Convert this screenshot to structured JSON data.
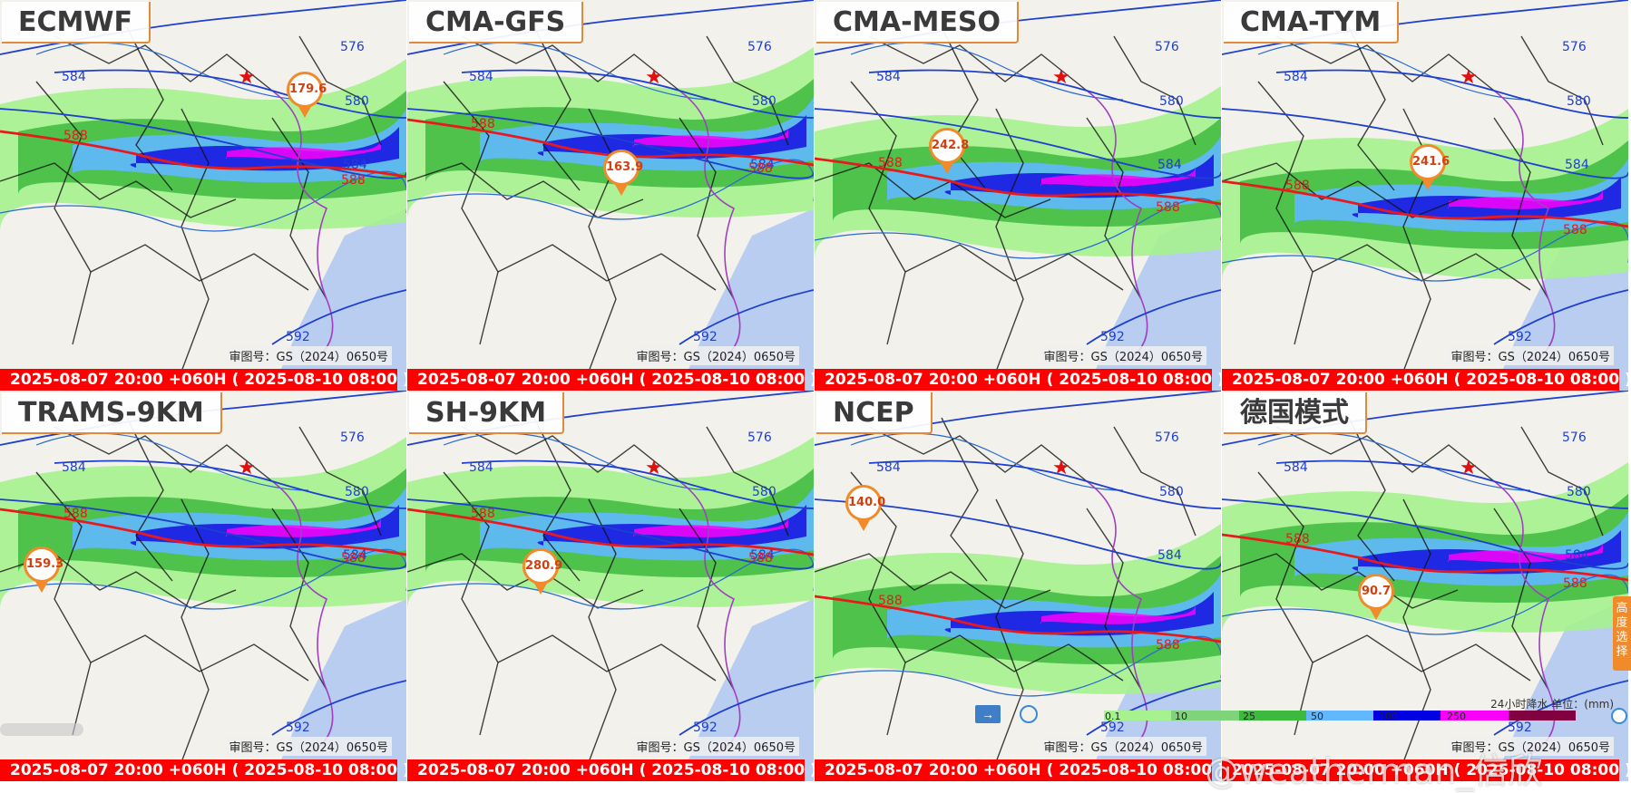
{
  "panels": [
    {
      "title": "ECMWF",
      "approval": "审图号：GS（2024）0650号",
      "time": "2025-08-07 20:00 +060H ( 2025-08-10 08:00 )",
      "max_value": "179.6",
      "contours": [
        "584",
        "576",
        "580",
        "588",
        "584",
        "588",
        "592"
      ]
    },
    {
      "title": "CMA-GFS",
      "approval": "审图号：GS（2024）0650号",
      "time": "2025-08-07 20:00 +060H ( 2025-08-10 08:00 )",
      "max_value": "163.9",
      "contours": [
        "584",
        "576",
        "580",
        "588",
        "584",
        "588",
        "592"
      ]
    },
    {
      "title": "CMA-MESO",
      "approval": "审图号：GS（2024）0650号",
      "time": "2025-08-07 20:00 +060H ( 2025-08-10 08:00 )",
      "max_value": "242.8",
      "contours": [
        "584",
        "576",
        "580",
        "588",
        "584",
        "588",
        "592"
      ]
    },
    {
      "title": "CMA-TYM",
      "approval": "审图号：GS（2024）0650号",
      "time": "2025-08-07 20:00 +060H ( 2025-08-10 08:00 )",
      "max_value": "241.6",
      "contours": [
        "584",
        "576",
        "580",
        "588",
        "584",
        "588",
        "592"
      ]
    },
    {
      "title": "TRAMS-9KM",
      "approval": "审图号：GS（2024）0650号",
      "time": "2025-08-07 20:00 +060H ( 2025-08-10 08:00 )",
      "max_value": "159.3",
      "contours": [
        "584",
        "576",
        "580",
        "588",
        "584",
        "588",
        "592"
      ]
    },
    {
      "title": "SH-9KM",
      "approval": "审图号：GS（2024）0650号",
      "time": "2025-08-07 20:00 +060H ( 2025-08-10 08:00 )",
      "max_value": "280.9",
      "contours": [
        "584",
        "576",
        "580",
        "588",
        "584",
        "588",
        "592"
      ]
    },
    {
      "title": "NCEP",
      "approval": "审图号：GS（2024）0650号",
      "time": "2025-08-07 20:00 +060H ( 2025-08-10 08:00 )",
      "max_value": "140.0",
      "contours": [
        "584",
        "576",
        "580",
        "588",
        "584",
        "588",
        "592"
      ]
    },
    {
      "title": "德国模式",
      "approval": "审图号：GS（2024）0650号",
      "time": "2025-08-07 20:00 +060H ( 2025-08-10 08:00 )",
      "max_value": "90.7",
      "contours": [
        "584",
        "576",
        "580",
        "588",
        "584",
        "588",
        "592"
      ]
    }
  ],
  "legend": {
    "caption": "24小时降水 单位：(mm)",
    "ticks": [
      "0.1",
      "10",
      "25",
      "50",
      "100",
      "250"
    ],
    "colors": [
      "#a6f28f",
      "#7ed37b",
      "#3dba3d",
      "#61b8ff",
      "#0000e1",
      "#fa00fa",
      "#800040"
    ]
  },
  "controls": {
    "level_select": "高度选择",
    "arrow_icon": "arrow-right-icon",
    "search_icon": "search-icon"
  },
  "watermark": "@weatherman_信欣",
  "colors": {
    "contour_red": "#e8191d",
    "contour_blue": "#1f3fcf",
    "marker_orange": "#f08a2a",
    "timebar_red": "#ff0000"
  }
}
